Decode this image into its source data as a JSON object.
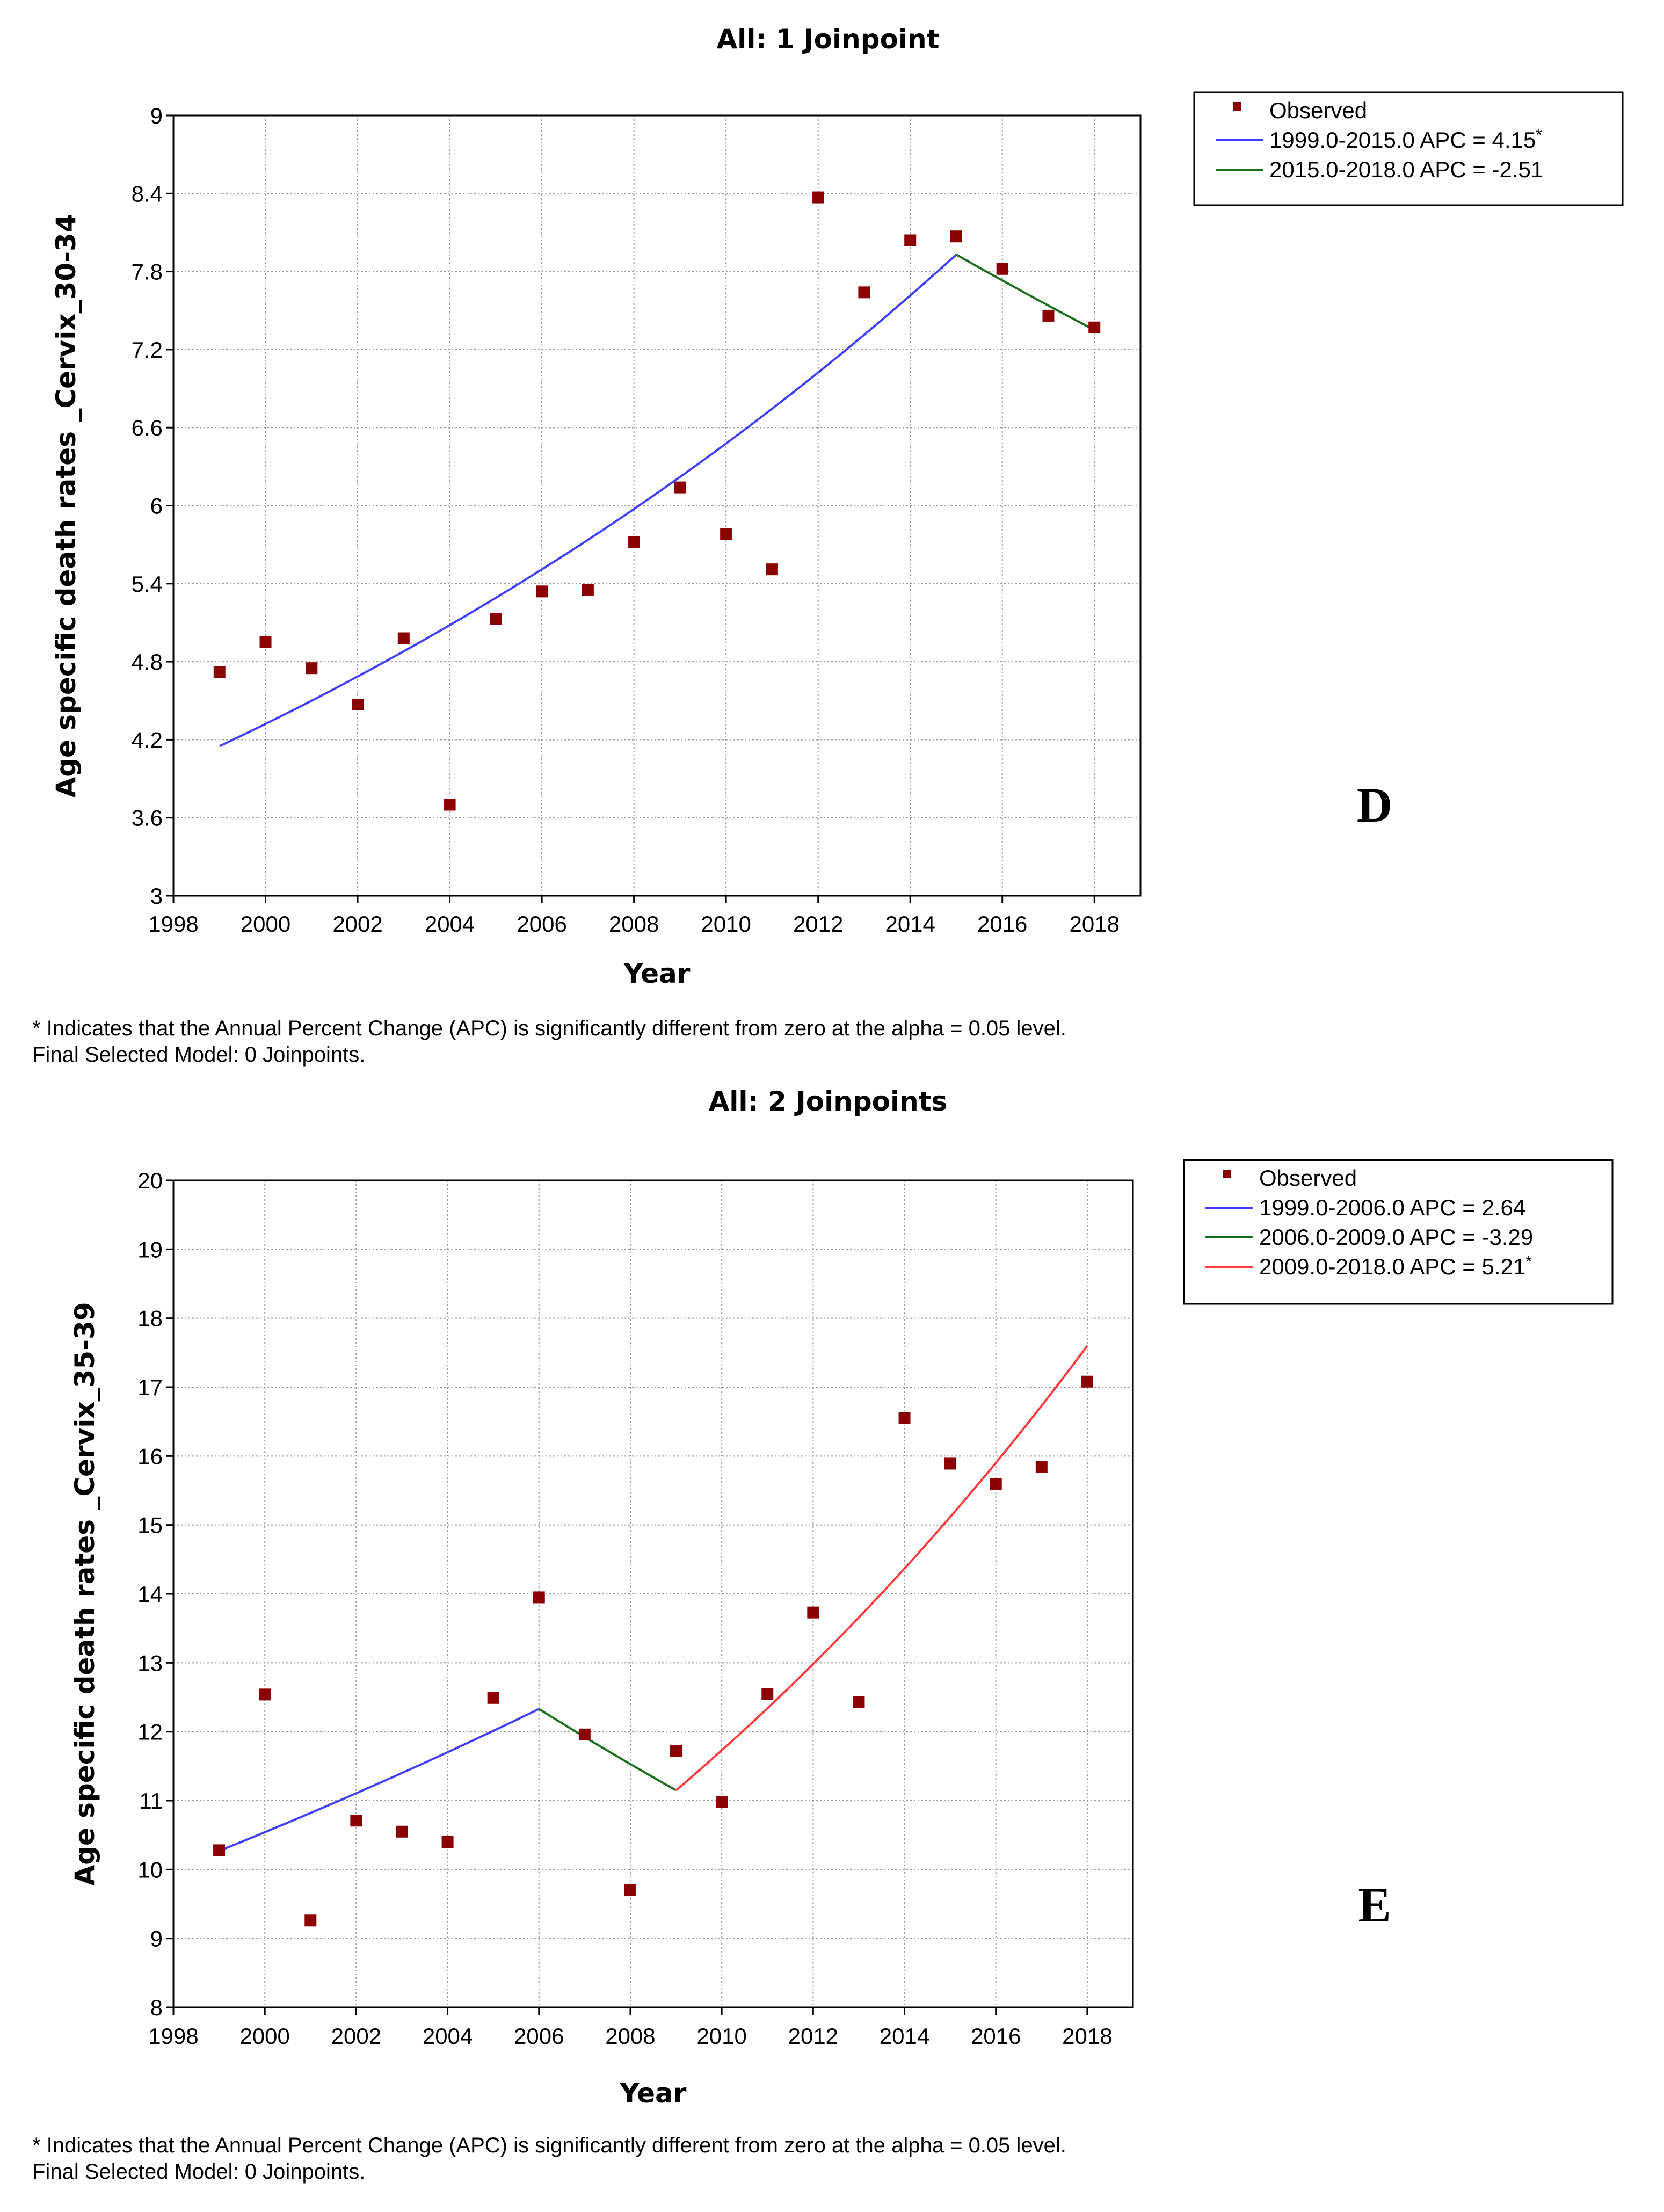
{
  "chart_data": [
    {
      "type": "scatter",
      "panel_label": "D",
      "title": "All: 1 Joinpoint",
      "xlabel": "Year",
      "ylabel": "Age specific death rates _Cervix_30-34",
      "xlim": [
        1998,
        2019
      ],
      "ylim": [
        3,
        9
      ],
      "xticks": [
        1998,
        2000,
        2002,
        2004,
        2006,
        2008,
        2010,
        2012,
        2014,
        2016,
        2018
      ],
      "yticks": [
        3,
        3.6,
        4.2,
        4.8,
        5.4,
        6,
        6.6,
        7.2,
        7.8,
        8.4,
        9
      ],
      "ytick_labels": [
        "3",
        "3.6",
        "4.2",
        "4.8",
        "5.4",
        "6",
        "6.6",
        "7.2",
        "7.8",
        "8.4",
        "9"
      ],
      "grid": true,
      "legend_position": "outside top-right",
      "observed": {
        "name": "Observed",
        "color": "#8b0000",
        "x": [
          1999,
          2000,
          2001,
          2002,
          2003,
          2004,
          2005,
          2006,
          2007,
          2008,
          2009,
          2010,
          2011,
          2012,
          2013,
          2014,
          2015,
          2016,
          2017,
          2018
        ],
        "y": [
          4.72,
          4.95,
          4.75,
          4.47,
          4.98,
          3.7,
          5.13,
          5.34,
          5.35,
          5.72,
          6.14,
          5.78,
          5.51,
          8.37,
          7.64,
          8.04,
          8.07,
          7.82,
          7.46,
          7.37
        ]
      },
      "segments": [
        {
          "label": "1999.0-2015.0 APC",
          "apc": "4.15",
          "significant": true,
          "color": "#3f3fff",
          "start_year": 1999,
          "end_year": 2015,
          "start_value": 4.15,
          "end_value": 7.93
        },
        {
          "label": "2015.0-2018.0 APC",
          "apc": "-2.51",
          "significant": false,
          "color": "#1a6f1a",
          "start_year": 2015,
          "end_year": 2018,
          "start_value": 7.93,
          "end_value": 7.35
        }
      ],
      "footnote_1": "* Indicates that the Annual Percent Change (APC) is significantly different from zero at the alpha = 0.05 level.",
      "footnote_2": "Final Selected Model: 0 Joinpoints."
    },
    {
      "type": "scatter",
      "panel_label": "E",
      "title": "All: 2 Joinpoints",
      "xlabel": "Year",
      "ylabel": "Age specific death rates _Cervix_35-39",
      "xlim": [
        1998,
        2019
      ],
      "ylim": [
        8,
        20
      ],
      "xticks": [
        1998,
        2000,
        2002,
        2004,
        2006,
        2008,
        2010,
        2012,
        2014,
        2016,
        2018
      ],
      "yticks": [
        8,
        9,
        10,
        11,
        12,
        13,
        14,
        15,
        16,
        17,
        18,
        19,
        20
      ],
      "ytick_labels": [
        "8",
        "9",
        "10",
        "11",
        "12",
        "13",
        "14",
        "15",
        "16",
        "17",
        "18",
        "19",
        "20"
      ],
      "grid": true,
      "legend_position": "outside top-right",
      "observed": {
        "name": "Observed",
        "color": "#8b0000",
        "x": [
          1999,
          2000,
          2001,
          2002,
          2003,
          2004,
          2005,
          2006,
          2007,
          2008,
          2009,
          2010,
          2011,
          2012,
          2013,
          2014,
          2015,
          2016,
          2017,
          2018
        ],
        "y": [
          10.28,
          12.54,
          9.26,
          10.71,
          10.55,
          10.4,
          12.49,
          13.95,
          11.96,
          9.7,
          11.72,
          10.98,
          12.55,
          13.73,
          12.43,
          16.55,
          15.89,
          15.59,
          15.84,
          17.08
        ]
      },
      "segments": [
        {
          "label": "1999.0-2006.0 APC",
          "apc": "2.64",
          "significant": false,
          "color": "#3f3fff",
          "start_year": 1999,
          "end_year": 2006,
          "start_value": 10.27,
          "end_value": 12.33
        },
        {
          "label": "2006.0-2009.0 APC",
          "apc": "-3.29",
          "significant": false,
          "color": "#1a6f1a",
          "start_year": 2006,
          "end_year": 2009,
          "start_value": 12.33,
          "end_value": 11.15
        },
        {
          "label": "2009.0-2018.0 APC",
          "apc": "5.21",
          "significant": true,
          "color": "#ff3b3b",
          "start_year": 2009,
          "end_year": 2018,
          "start_value": 11.15,
          "end_value": 17.6
        }
      ],
      "footnote_1": "* Indicates that the Annual Percent Change (APC) is significantly different from zero at the alpha = 0.05 level.",
      "footnote_2": "Final Selected Model: 0 Joinpoints."
    }
  ]
}
